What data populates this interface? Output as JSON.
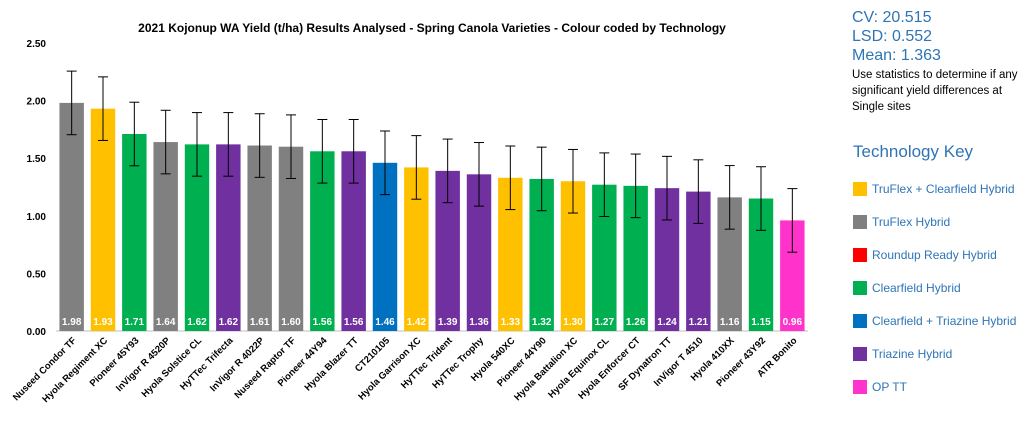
{
  "stats": {
    "cv": "CV: 20.515",
    "lsd": "LSD: 0.552",
    "mean": "Mean: 1.363",
    "note": "Use statistics to determine if any significant yield differences at Single sites"
  },
  "key": {
    "title": "Technology Key",
    "items": [
      {
        "label": "TruFlex + Clearfield Hybrid",
        "color": "#ffc000"
      },
      {
        "label": "TruFlex Hybrid",
        "color": "#808080"
      },
      {
        "label": "Roundup Ready Hybrid",
        "color": "#ff0000"
      },
      {
        "label": "Clearfield Hybrid",
        "color": "#00b050"
      },
      {
        "label": "Clearfield + Triazine Hybrid",
        "color": "#0070c0"
      },
      {
        "label": "Triazine Hybrid",
        "color": "#7030a0"
      },
      {
        "label": "OP TT",
        "color": "#ff33cc"
      }
    ]
  },
  "chart_data": {
    "type": "bar",
    "title": "2021 Kojonup WA Yield (t/ha) Results Analysed - Spring Canola Varieties - Colour coded by Technology",
    "xlabel": "",
    "ylabel": "",
    "ylim": [
      0,
      2.5
    ],
    "yticks": [
      "0.00",
      "0.50",
      "1.00",
      "1.50",
      "2.00",
      "2.50"
    ],
    "grid": false,
    "error_bar_half_width": 0.276,
    "categories": [
      "Nuseed Condor TF",
      "Hyola Regiment XC",
      "Pioneer 45Y93",
      "InVigor R 4520P",
      "Hyola Solstice CL",
      "HyTTec Trifecta",
      "InVigor R 4022P",
      "Nuseed Raptor TF",
      "Pioneer 44Y94",
      "Hyola Blazer TT",
      "CT210105",
      "Hyola Garrison XC",
      "HyTTec Trident",
      "HyTTec Trophy",
      "Hyola 540XC",
      "Pioneer 44Y90",
      "Hyola Battalion XC",
      "Hyola Equinox CL",
      "Hyola Enforcer CT",
      "SF Dynatron TT",
      "InVigor T 4510",
      "Hyola 410XX",
      "Pioneer 43Y92",
      "ATR Bonito"
    ],
    "values": [
      1.98,
      1.93,
      1.71,
      1.64,
      1.62,
      1.62,
      1.61,
      1.6,
      1.56,
      1.56,
      1.46,
      1.42,
      1.39,
      1.36,
      1.33,
      1.32,
      1.3,
      1.27,
      1.26,
      1.24,
      1.21,
      1.16,
      1.15,
      0.96
    ],
    "data_labels": [
      "1.98",
      "1.93",
      "1.71",
      "1.64",
      "1.62",
      "1.62",
      "1.61",
      "1.60",
      "1.56",
      "1.56",
      "1.46",
      "1.42",
      "1.39",
      "1.36",
      "1.33",
      "1.32",
      "1.30",
      "1.27",
      "1.26",
      "1.24",
      "1.21",
      "1.16",
      "1.15",
      "0.96"
    ],
    "technologies": [
      "TruFlex Hybrid",
      "TruFlex + Clearfield Hybrid",
      "Clearfield Hybrid",
      "TruFlex Hybrid",
      "Clearfield Hybrid",
      "Triazine Hybrid",
      "TruFlex Hybrid",
      "TruFlex Hybrid",
      "Clearfield Hybrid",
      "Triazine Hybrid",
      "Clearfield + Triazine Hybrid",
      "TruFlex + Clearfield Hybrid",
      "Triazine Hybrid",
      "Triazine Hybrid",
      "TruFlex + Clearfield Hybrid",
      "Clearfield Hybrid",
      "TruFlex + Clearfield Hybrid",
      "Clearfield Hybrid",
      "Clearfield Hybrid",
      "Triazine Hybrid",
      "Triazine Hybrid",
      "TruFlex Hybrid",
      "Clearfield Hybrid",
      "OP TT"
    ]
  }
}
